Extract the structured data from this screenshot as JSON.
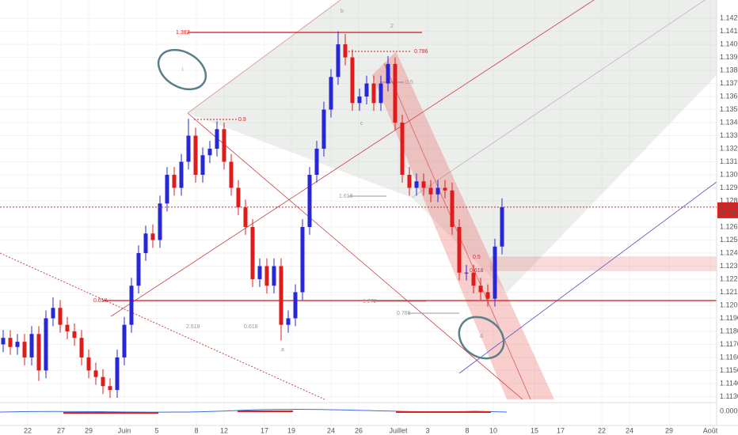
{
  "chart_data": {
    "type": "candlestick",
    "up_color": "#2727d8",
    "down_color": "#e01b1b",
    "open": [
      1.117,
      1.1175,
      1.1168,
      1.1172,
      1.116,
      1.1178,
      1.115,
      1.119,
      1.1198,
      1.1185,
      1.118,
      1.1175,
      1.116,
      1.115,
      1.1145,
      1.1138,
      1.1135,
      1.116,
      1.1185,
      1.1215,
      1.124,
      1.1255,
      1.125,
      1.1278,
      1.13,
      1.129,
      1.131,
      1.133,
      1.13,
      1.1315,
      1.132,
      1.1335,
      1.131,
      1.129,
      1.1275,
      1.126,
      1.122,
      1.123,
      1.1215,
      1.123,
      1.1185,
      1.119,
      1.121,
      1.126,
      1.13,
      1.132,
      1.135,
      1.1375,
      1.14,
      1.139,
      1.1355,
      1.136,
      1.137,
      1.1355,
      1.137,
      1.1385,
      1.134,
      1.13,
      1.129,
      1.1295,
      1.129,
      1.1285,
      1.129,
      1.1288,
      1.126,
      1.1225,
      1.1225,
      1.1215,
      1.121,
      1.1205,
      1.1245
    ],
    "high": [
      1.1181,
      1.1181,
      1.1178,
      1.1178,
      1.1184,
      1.1184,
      1.1196,
      1.1206,
      1.1204,
      1.1191,
      1.1186,
      1.1181,
      1.1166,
      1.1156,
      1.1151,
      1.1144,
      1.1166,
      1.1191,
      1.1221,
      1.1246,
      1.1261,
      1.1262,
      1.1284,
      1.1306,
      1.1306,
      1.1316,
      1.1343,
      1.1336,
      1.1321,
      1.1326,
      1.1341,
      1.134,
      1.1316,
      1.1296,
      1.1281,
      1.1266,
      1.1236,
      1.1236,
      1.1236,
      1.1236,
      1.1196,
      1.1216,
      1.1266,
      1.1306,
      1.1326,
      1.1356,
      1.1381,
      1.141,
      1.1408,
      1.1396,
      1.1366,
      1.1376,
      1.1376,
      1.1376,
      1.1391,
      1.139,
      1.1346,
      1.1306,
      1.1301,
      1.1301,
      1.1296,
      1.1296,
      1.1296,
      1.1294,
      1.1266,
      1.1231,
      1.1231,
      1.1221,
      1.1216,
      1.1251,
      1.1282
    ],
    "low": [
      1.1164,
      1.1162,
      1.1162,
      1.1154,
      1.1154,
      1.1142,
      1.1144,
      1.1184,
      1.1179,
      1.1174,
      1.1169,
      1.1154,
      1.1144,
      1.1139,
      1.1132,
      1.1129,
      1.1129,
      1.1154,
      1.1179,
      1.1209,
      1.1234,
      1.1244,
      1.1244,
      1.1272,
      1.1284,
      1.1284,
      1.1304,
      1.1294,
      1.1294,
      1.1309,
      1.1314,
      1.1304,
      1.1284,
      1.1269,
      1.1254,
      1.1214,
      1.1214,
      1.1209,
      1.1209,
      1.1173,
      1.1179,
      1.1184,
      1.1204,
      1.1254,
      1.1294,
      1.1314,
      1.1344,
      1.1369,
      1.1384,
      1.1349,
      1.1349,
      1.1354,
      1.1349,
      1.1349,
      1.1364,
      1.1334,
      1.1294,
      1.1284,
      1.1284,
      1.1284,
      1.1279,
      1.1279,
      1.1282,
      1.1254,
      1.1219,
      1.1219,
      1.1209,
      1.1204,
      1.1199,
      1.1199,
      1.1239
    ],
    "close": [
      1.1175,
      1.1168,
      1.1172,
      1.116,
      1.1178,
      1.115,
      1.119,
      1.1198,
      1.1185,
      1.118,
      1.1175,
      1.116,
      1.115,
      1.1145,
      1.1138,
      1.1135,
      1.116,
      1.1185,
      1.1215,
      1.124,
      1.1255,
      1.125,
      1.1278,
      1.13,
      1.129,
      1.131,
      1.133,
      1.13,
      1.1315,
      1.132,
      1.1335,
      1.131,
      1.129,
      1.1275,
      1.126,
      1.122,
      1.123,
      1.1215,
      1.123,
      1.1185,
      1.119,
      1.121,
      1.126,
      1.13,
      1.132,
      1.135,
      1.1375,
      1.14,
      1.139,
      1.1355,
      1.136,
      1.137,
      1.1355,
      1.137,
      1.1385,
      1.134,
      1.13,
      1.129,
      1.1295,
      1.129,
      1.1285,
      1.129,
      1.1288,
      1.126,
      1.1225,
      1.1225,
      1.1215,
      1.121,
      1.1205,
      1.1245,
      1.12752
    ],
    "last_price": 1.12752,
    "countdown": "05:28:01",
    "indicator_label": "0.0000",
    "ylim": [
      1.1126,
      1.1434
    ],
    "yticks": [
      {
        "value": 1.113,
        "label": "1.11300"
      },
      {
        "value": 1.114,
        "label": "1.11400"
      },
      {
        "value": 1.115,
        "label": "1.11500"
      },
      {
        "value": 1.116,
        "label": "1.11600"
      },
      {
        "value": 1.117,
        "label": "1.11700"
      },
      {
        "value": 1.118,
        "label": "1.11800"
      },
      {
        "value": 1.119,
        "label": "1.11900"
      },
      {
        "value": 1.12,
        "label": "1.12000"
      },
      {
        "value": 1.121,
        "label": "1.12100"
      },
      {
        "value": 1.122,
        "label": "1.12200"
      },
      {
        "value": 1.123,
        "label": "1.12300"
      },
      {
        "value": 1.124,
        "label": "1.12400"
      },
      {
        "value": 1.125,
        "label": "1.12500"
      },
      {
        "value": 1.126,
        "label": "1.12600"
      },
      {
        "value": 1.128,
        "label": "1.12800"
      },
      {
        "value": 1.129,
        "label": "1.12900"
      },
      {
        "value": 1.13,
        "label": "1.13000"
      },
      {
        "value": 1.131,
        "label": "1.13100"
      },
      {
        "value": 1.132,
        "label": "1.13200"
      },
      {
        "value": 1.133,
        "label": "1.13300"
      },
      {
        "value": 1.134,
        "label": "1.13400"
      },
      {
        "value": 1.135,
        "label": "1.13500"
      },
      {
        "value": 1.136,
        "label": "1.13600"
      },
      {
        "value": 1.137,
        "label": "1.13700"
      },
      {
        "value": 1.138,
        "label": "1.13800"
      },
      {
        "value": 1.139,
        "label": "1.13900"
      },
      {
        "value": 1.14,
        "label": "1.14000"
      },
      {
        "value": 1.141,
        "label": "1.14100"
      },
      {
        "value": 1.142,
        "label": "1.14200"
      }
    ],
    "dates": [
      "22",
      "27",
      "29",
      "Juin",
      "5",
      "8",
      "12",
      "17",
      "19",
      "24",
      "26",
      "Juillet",
      "3",
      "8",
      "10",
      "15",
      "17",
      "22",
      "24",
      "29",
      "Août"
    ],
    "annotations": [
      "1.382",
      "0.786",
      "0.5",
      "0.9",
      "1.618",
      "0.618",
      "1.272",
      "0.786",
      "0.5",
      "0.618",
      "2.618",
      "0.618",
      "b",
      "a",
      "c",
      "i",
      "d",
      "2"
    ]
  }
}
